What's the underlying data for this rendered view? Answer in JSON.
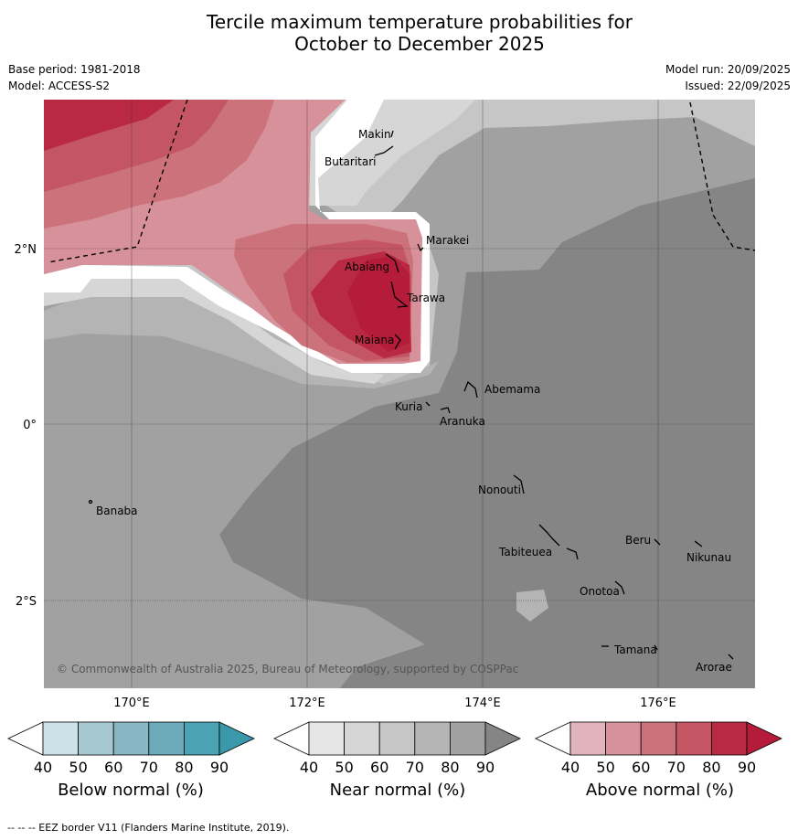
{
  "title": {
    "line1": "Tercile maximum temperature probabilities for",
    "line2": "October to December 2025"
  },
  "meta": {
    "base_period": "Base period: 1981-2018",
    "model": "Model: ACCESS-S2",
    "model_run": "Model run: 20/09/2025",
    "issued": "Issued: 22/09/2025"
  },
  "axes": {
    "lon_ticks": [
      "170°E",
      "172°E",
      "174°E",
      "176°E"
    ],
    "lat_ticks": [
      "2°N",
      "0°",
      "2°S"
    ]
  },
  "places": [
    "Makin",
    "Butaritari",
    "Marakei",
    "Abaiang",
    "Tarawa",
    "Maiana",
    "Abemama",
    "Kuria",
    "Aranuka",
    "Banaba",
    "Nonouti",
    "Beru",
    "Tabiteuea",
    "Nikunau",
    "Onotoa",
    "Tamana",
    "Arorae"
  ],
  "copyright": "© Commonwealth of Australia 2025, Bureau of Meteorology, supported by COSPPac",
  "colorbars": [
    {
      "label": "Below normal (%)",
      "ticks": [
        "40",
        "50",
        "60",
        "70",
        "80",
        "90"
      ],
      "colors": [
        "#ffffff",
        "#cce1e8",
        "#a6c8d1",
        "#88b7c3",
        "#6aaab9",
        "#4aa3b2",
        "#3a98aa"
      ]
    },
    {
      "label": "Near normal (%)",
      "ticks": [
        "40",
        "50",
        "60",
        "70",
        "80",
        "90"
      ],
      "colors": [
        "#ffffff",
        "#e6e6e6",
        "#d6d6d6",
        "#c6c6c6",
        "#b4b4b4",
        "#a1a1a1",
        "#858585"
      ]
    },
    {
      "label": "Above normal (%)",
      "ticks": [
        "40",
        "50",
        "60",
        "70",
        "80",
        "90"
      ],
      "colors": [
        "#ffffff",
        "#e1b4bc",
        "#d6919a",
        "#cc727a",
        "#c45563",
        "#b92942",
        "#b41c3a"
      ]
    }
  ],
  "footer": "--  --  -- EEZ border V11 (Flanders Marine Institute, 2019)."
}
